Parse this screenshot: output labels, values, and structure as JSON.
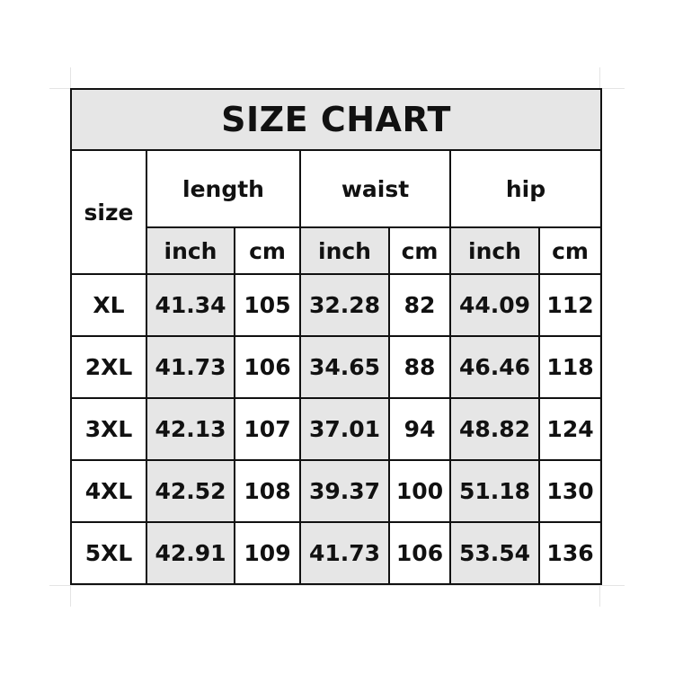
{
  "title": "SIZE CHART",
  "headers": {
    "size": "size",
    "groups": [
      "length",
      "waist",
      "hip"
    ],
    "units": [
      "inch",
      "cm",
      "inch",
      "cm",
      "inch",
      "cm"
    ]
  },
  "rows": [
    {
      "size": "XL",
      "values": [
        "41.34",
        "105",
        "32.28",
        "82",
        "44.09",
        "112"
      ]
    },
    {
      "size": "2XL",
      "values": [
        "41.73",
        "106",
        "34.65",
        "88",
        "46.46",
        "118"
      ]
    },
    {
      "size": "3XL",
      "values": [
        "42.13",
        "107",
        "37.01",
        "94",
        "48.82",
        "124"
      ]
    },
    {
      "size": "4XL",
      "values": [
        "42.52",
        "108",
        "39.37",
        "100",
        "51.18",
        "130"
      ]
    },
    {
      "size": "5XL",
      "values": [
        "42.91",
        "109",
        "41.73",
        "106",
        "53.54",
        "136"
      ]
    }
  ],
  "colors": {
    "shade": "#e6e6e6",
    "border": "#111111"
  }
}
